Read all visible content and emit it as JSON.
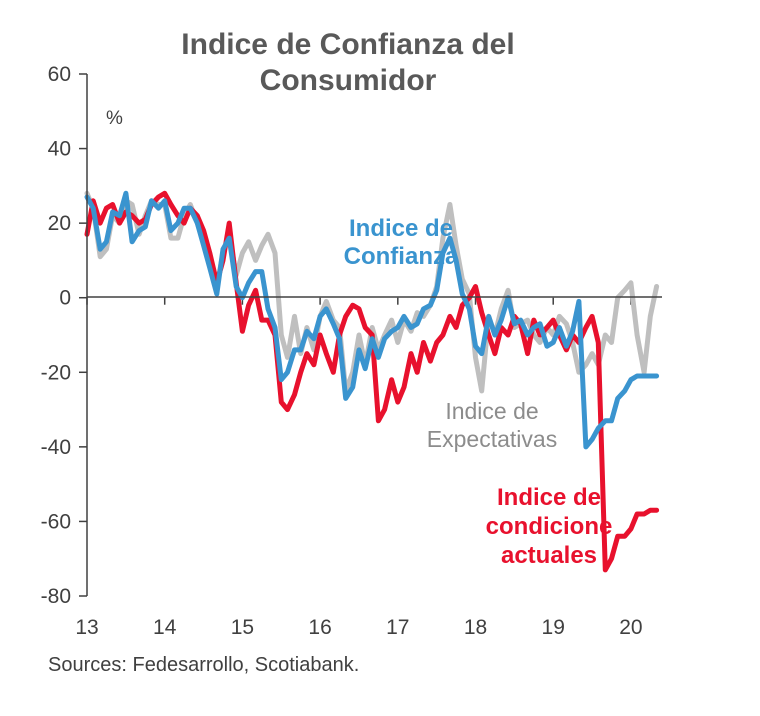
{
  "chart_data": {
    "type": "line",
    "title_lines": [
      "Indice de Confianza del",
      "Consumidor"
    ],
    "ylabel": "%",
    "ylim": [
      -80,
      60
    ],
    "yticks": [
      "60",
      "40",
      "20",
      "0",
      "-20",
      "-40",
      "-60",
      "-80"
    ],
    "xlim": [
      2013,
      2020.4
    ],
    "xticks": [
      "13",
      "14",
      "15",
      "16",
      "17",
      "18",
      "19",
      "20"
    ],
    "source": "Sources: Fedesarrollo,  Scotiabank.",
    "series": [
      {
        "name": "Indice de Expectativas",
        "label_lines": [
          "Indice de",
          "Expectativas"
        ],
        "color": "#bfbfbf",
        "x": [
          2013.0,
          2013.08,
          2013.17,
          2013.25,
          2013.33,
          2013.42,
          2013.5,
          2013.58,
          2013.67,
          2013.75,
          2013.83,
          2013.92,
          2014.0,
          2014.08,
          2014.17,
          2014.25,
          2014.33,
          2014.42,
          2014.5,
          2014.58,
          2014.67,
          2014.75,
          2014.83,
          2014.92,
          2015.0,
          2015.08,
          2015.17,
          2015.25,
          2015.33,
          2015.42,
          2015.5,
          2015.58,
          2015.67,
          2015.75,
          2015.83,
          2015.92,
          2016.0,
          2016.08,
          2016.17,
          2016.25,
          2016.33,
          2016.42,
          2016.5,
          2016.58,
          2016.67,
          2016.75,
          2016.83,
          2016.92,
          2017.0,
          2017.08,
          2017.17,
          2017.25,
          2017.33,
          2017.42,
          2017.5,
          2017.58,
          2017.67,
          2017.75,
          2017.83,
          2017.92,
          2018.0,
          2018.08,
          2018.17,
          2018.25,
          2018.33,
          2018.42,
          2018.5,
          2018.58,
          2018.67,
          2018.75,
          2018.83,
          2018.92,
          2019.0,
          2019.08,
          2019.17,
          2019.25,
          2019.33,
          2019.42,
          2019.5,
          2019.58,
          2019.67,
          2019.75,
          2019.83,
          2019.92,
          2020.0,
          2020.08,
          2020.17,
          2020.25,
          2020.33
        ],
        "values": [
          28,
          24,
          11,
          13,
          22,
          20,
          26,
          25,
          17,
          22,
          26,
          25,
          25,
          16,
          16,
          22,
          25,
          20,
          15,
          10,
          3,
          12,
          17,
          6,
          12,
          15,
          10,
          14,
          17,
          12,
          -10,
          -16,
          -5,
          -15,
          -8,
          -14,
          -5,
          -1,
          -6,
          -8,
          -25,
          -20,
          -10,
          -18,
          -8,
          -14,
          -10,
          -6,
          -12,
          -6,
          -9,
          -4,
          -5,
          -2,
          3,
          16,
          25,
          14,
          5,
          1,
          -16,
          -25,
          -5,
          -10,
          -3,
          2,
          -8,
          -7,
          -6,
          -10,
          -12,
          -8,
          -10,
          -5,
          -7,
          -12,
          -20,
          -18,
          -15,
          -18,
          -10,
          -12,
          0,
          2,
          4,
          -10,
          -20,
          -5,
          3
        ]
      },
      {
        "name": "Indice de condiciones actuales",
        "label_lines": [
          "Indice de",
          "condicione",
          "actuales"
        ],
        "color": "#e8112d",
        "x": [
          2013.0,
          2013.08,
          2013.17,
          2013.25,
          2013.33,
          2013.42,
          2013.5,
          2013.58,
          2013.67,
          2013.75,
          2013.83,
          2013.92,
          2014.0,
          2014.08,
          2014.17,
          2014.25,
          2014.33,
          2014.42,
          2014.5,
          2014.58,
          2014.67,
          2014.75,
          2014.83,
          2014.92,
          2015.0,
          2015.08,
          2015.17,
          2015.25,
          2015.33,
          2015.42,
          2015.5,
          2015.58,
          2015.67,
          2015.75,
          2015.83,
          2015.92,
          2016.0,
          2016.08,
          2016.17,
          2016.25,
          2016.33,
          2016.42,
          2016.5,
          2016.58,
          2016.67,
          2016.75,
          2016.83,
          2016.92,
          2017.0,
          2017.08,
          2017.17,
          2017.25,
          2017.33,
          2017.42,
          2017.5,
          2017.58,
          2017.67,
          2017.75,
          2017.83,
          2017.92,
          2018.0,
          2018.08,
          2018.17,
          2018.25,
          2018.33,
          2018.42,
          2018.5,
          2018.58,
          2018.67,
          2018.75,
          2018.83,
          2018.92,
          2019.0,
          2019.08,
          2019.17,
          2019.25,
          2019.33,
          2019.42,
          2019.5,
          2019.58,
          2019.67,
          2019.75,
          2019.83,
          2019.92,
          2020.0,
          2020.08,
          2020.17,
          2020.25,
          2020.33
        ],
        "values": [
          17,
          26,
          20,
          24,
          25,
          20,
          23,
          22,
          20,
          21,
          25,
          27,
          28,
          25,
          22,
          20,
          24,
          22,
          18,
          12,
          4,
          10,
          20,
          4,
          -9,
          -2,
          2,
          -6,
          -6,
          -10,
          -28,
          -30,
          -26,
          -20,
          -15,
          -18,
          -10,
          -15,
          -20,
          -10,
          -5,
          -2,
          -3,
          -8,
          -10,
          -33,
          -30,
          -22,
          -28,
          -24,
          -15,
          -20,
          -12,
          -17,
          -12,
          -10,
          -5,
          -8,
          -2,
          0,
          3,
          -4,
          -10,
          -15,
          -8,
          -10,
          -5,
          -7,
          -15,
          -6,
          -10,
          -8,
          -6,
          -10,
          -14,
          -10,
          -12,
          -8,
          -5,
          -12,
          -73,
          -70,
          -64,
          -64,
          -62,
          -58,
          -58,
          -57,
          -57
        ]
      },
      {
        "name": "Indice de Confianza",
        "label_lines": [
          "Indice de",
          "Confianza"
        ],
        "color": "#3a94cf",
        "x": [
          2013.0,
          2013.08,
          2013.17,
          2013.25,
          2013.33,
          2013.42,
          2013.5,
          2013.58,
          2013.67,
          2013.75,
          2013.83,
          2013.92,
          2014.0,
          2014.08,
          2014.17,
          2014.25,
          2014.33,
          2014.42,
          2014.5,
          2014.58,
          2014.67,
          2014.75,
          2014.83,
          2014.92,
          2015.0,
          2015.08,
          2015.17,
          2015.25,
          2015.33,
          2015.42,
          2015.5,
          2015.58,
          2015.67,
          2015.75,
          2015.83,
          2015.92,
          2016.0,
          2016.08,
          2016.17,
          2016.25,
          2016.33,
          2016.42,
          2016.5,
          2016.58,
          2016.67,
          2016.75,
          2016.83,
          2016.92,
          2017.0,
          2017.08,
          2017.17,
          2017.25,
          2017.33,
          2017.42,
          2017.5,
          2017.58,
          2017.67,
          2017.75,
          2017.83,
          2017.92,
          2018.0,
          2018.08,
          2018.17,
          2018.25,
          2018.33,
          2018.42,
          2018.5,
          2018.58,
          2018.67,
          2018.75,
          2018.83,
          2018.92,
          2019.0,
          2019.08,
          2019.17,
          2019.25,
          2019.33,
          2019.42,
          2019.5,
          2019.58,
          2019.67,
          2019.75,
          2019.83,
          2019.92,
          2020.0,
          2020.08,
          2020.17,
          2020.25,
          2020.33
        ],
        "values": [
          27,
          24,
          13,
          15,
          23,
          22,
          28,
          15,
          18,
          19,
          26,
          24,
          26,
          18,
          20,
          24,
          24,
          20,
          14,
          8,
          1,
          13,
          16,
          3,
          0,
          4,
          7,
          7,
          -3,
          -8,
          -22,
          -20,
          -14,
          -14,
          -9,
          -11,
          -5,
          -3,
          -7,
          -11,
          -27,
          -24,
          -14,
          -19,
          -11,
          -16,
          -11,
          -9,
          -8,
          -5,
          -8,
          -7,
          -3,
          -2,
          2,
          12,
          16,
          10,
          1,
          -3,
          -13,
          -15,
          -5,
          -10,
          -6,
          0,
          -7,
          -6,
          -10,
          -8,
          -7,
          -13,
          -12,
          -8,
          -13,
          -9,
          -1,
          -40,
          -38,
          -35,
          -33,
          -33,
          -27,
          -25,
          -22,
          -21,
          -21,
          -21,
          -21
        ]
      }
    ]
  }
}
